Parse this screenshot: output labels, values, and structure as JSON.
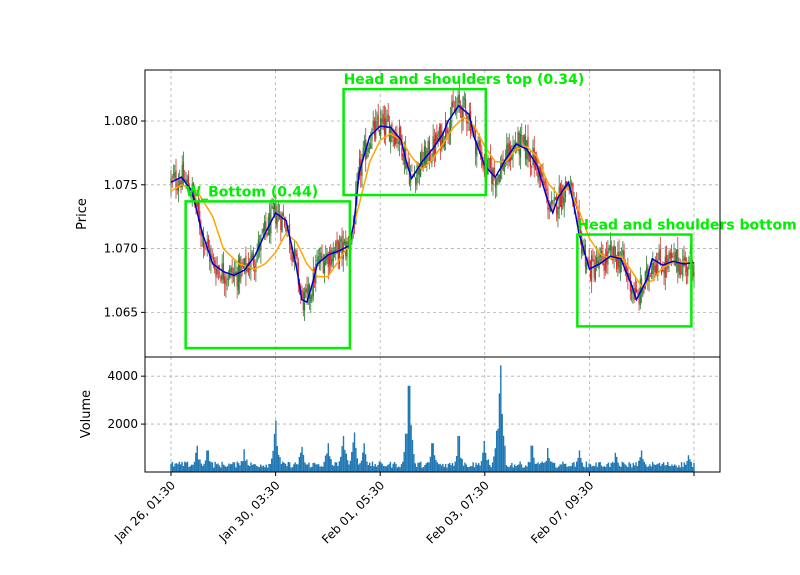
{
  "chart_data": {
    "type": "candlestick",
    "x_tick_labels": [
      "Jan 26, 01:30",
      "Jan 30, 03:30",
      "Feb 01, 05:30",
      "Feb 03, 07:30",
      "Feb 07, 09:30"
    ],
    "price_panel": {
      "ylabel": "Price",
      "ylim": [
        1.0615,
        1.084
      ],
      "y_ticks": [
        "1.065",
        "1.070",
        "1.075",
        "1.080"
      ],
      "grid": true,
      "fast_ma": [
        [
          0.0,
          1.0752
        ],
        [
          0.02,
          1.0756
        ],
        [
          0.04,
          1.0745
        ],
        [
          0.06,
          1.0712
        ],
        [
          0.08,
          1.0688
        ],
        [
          0.1,
          1.0682
        ],
        [
          0.12,
          1.0679
        ],
        [
          0.14,
          1.0683
        ],
        [
          0.16,
          1.0694
        ],
        [
          0.18,
          1.0712
        ],
        [
          0.2,
          1.0728
        ],
        [
          0.22,
          1.0722
        ],
        [
          0.24,
          1.0685
        ],
        [
          0.25,
          1.066
        ],
        [
          0.26,
          1.0658
        ],
        [
          0.27,
          1.0672
        ],
        [
          0.28,
          1.0688
        ],
        [
          0.3,
          1.0695
        ],
        [
          0.32,
          1.0698
        ],
        [
          0.34,
          1.0702
        ],
        [
          0.35,
          1.072
        ],
        [
          0.36,
          1.076
        ],
        [
          0.38,
          1.0788
        ],
        [
          0.4,
          1.0796
        ],
        [
          0.42,
          1.0795
        ],
        [
          0.44,
          1.0785
        ],
        [
          0.45,
          1.0768
        ],
        [
          0.46,
          1.0755
        ],
        [
          0.48,
          1.0768
        ],
        [
          0.5,
          1.0778
        ],
        [
          0.52,
          1.079
        ],
        [
          0.53,
          1.08
        ],
        [
          0.55,
          1.0812
        ],
        [
          0.57,
          1.0805
        ],
        [
          0.58,
          1.0787
        ],
        [
          0.6,
          1.0765
        ],
        [
          0.62,
          1.0756
        ],
        [
          0.64,
          1.077
        ],
        [
          0.66,
          1.0782
        ],
        [
          0.68,
          1.0778
        ],
        [
          0.7,
          1.0765
        ],
        [
          0.72,
          1.0738
        ],
        [
          0.73,
          1.0728
        ],
        [
          0.74,
          1.074
        ],
        [
          0.76,
          1.0752
        ],
        [
          0.77,
          1.0735
        ],
        [
          0.78,
          1.0712
        ],
        [
          0.8,
          1.0684
        ],
        [
          0.82,
          1.0688
        ],
        [
          0.84,
          1.0694
        ],
        [
          0.86,
          1.0692
        ],
        [
          0.88,
          1.0672
        ],
        [
          0.89,
          1.066
        ],
        [
          0.91,
          1.0676
        ],
        [
          0.92,
          1.0692
        ],
        [
          0.94,
          1.0687
        ],
        [
          0.96,
          1.069
        ],
        [
          0.98,
          1.0688
        ],
        [
          1.0,
          1.0689
        ]
      ],
      "slow_ma": [
        [
          0.0,
          1.0745
        ],
        [
          0.02,
          1.075
        ],
        [
          0.05,
          1.0745
        ],
        [
          0.08,
          1.0725
        ],
        [
          0.1,
          1.07
        ],
        [
          0.13,
          1.0688
        ],
        [
          0.16,
          1.0684
        ],
        [
          0.18,
          1.0688
        ],
        [
          0.2,
          1.0697
        ],
        [
          0.22,
          1.0712
        ],
        [
          0.24,
          1.0705
        ],
        [
          0.26,
          1.0688
        ],
        [
          0.28,
          1.0678
        ],
        [
          0.3,
          1.0678
        ],
        [
          0.32,
          1.069
        ],
        [
          0.34,
          1.0703
        ],
        [
          0.36,
          1.0735
        ],
        [
          0.38,
          1.0768
        ],
        [
          0.4,
          1.0785
        ],
        [
          0.42,
          1.079
        ],
        [
          0.44,
          1.0785
        ],
        [
          0.46,
          1.0772
        ],
        [
          0.48,
          1.0762
        ],
        [
          0.5,
          1.077
        ],
        [
          0.52,
          1.0782
        ],
        [
          0.54,
          1.0795
        ],
        [
          0.56,
          1.0803
        ],
        [
          0.58,
          1.0796
        ],
        [
          0.6,
          1.078
        ],
        [
          0.62,
          1.0768
        ],
        [
          0.64,
          1.0768
        ],
        [
          0.66,
          1.0778
        ],
        [
          0.68,
          1.078
        ],
        [
          0.7,
          1.0772
        ],
        [
          0.72,
          1.0752
        ],
        [
          0.74,
          1.0742
        ],
        [
          0.76,
          1.0748
        ],
        [
          0.78,
          1.073
        ],
        [
          0.8,
          1.0708
        ],
        [
          0.82,
          1.0696
        ],
        [
          0.84,
          1.0692
        ],
        [
          0.86,
          1.0694
        ],
        [
          0.88,
          1.0683
        ],
        [
          0.9,
          1.067
        ],
        [
          0.92,
          1.0675
        ],
        [
          0.94,
          1.0685
        ],
        [
          0.96,
          1.0689
        ],
        [
          0.98,
          1.069
        ],
        [
          1.0,
          1.0688
        ]
      ]
    },
    "volume_panel": {
      "ylabel": "Volume",
      "ylim": [
        0,
        4800
      ],
      "y_ticks": [
        "2000",
        "4000"
      ],
      "grid": true,
      "baseline": 180,
      "spikes": [
        [
          0.05,
          1100
        ],
        [
          0.07,
          900
        ],
        [
          0.14,
          950
        ],
        [
          0.2,
          2150
        ],
        [
          0.25,
          1050
        ],
        [
          0.3,
          1200
        ],
        [
          0.33,
          1500
        ],
        [
          0.35,
          1650
        ],
        [
          0.37,
          1200
        ],
        [
          0.45,
          1600
        ],
        [
          0.455,
          3600
        ],
        [
          0.5,
          1200
        ],
        [
          0.55,
          1500
        ],
        [
          0.6,
          1300
        ],
        [
          0.625,
          1800
        ],
        [
          0.63,
          4450
        ],
        [
          0.69,
          1100
        ],
        [
          0.72,
          1000
        ],
        [
          0.78,
          900
        ],
        [
          0.85,
          800
        ],
        [
          0.9,
          900
        ],
        [
          0.99,
          700
        ]
      ]
    },
    "patterns": [
      {
        "label": "W_Bottom (0.44)",
        "x_range": [
          0.028,
          0.342
        ],
        "y_range": [
          1.0622,
          1.0737
        ]
      },
      {
        "label": "Head and shoulders top (0.34)",
        "x_range": [
          0.33,
          0.602
        ],
        "y_range": [
          1.0742,
          1.0825
        ]
      },
      {
        "label": "Head and shoulders bottom",
        "x_range": [
          0.777,
          0.995
        ],
        "y_range": [
          1.0639,
          1.0711
        ]
      }
    ],
    "colors": {
      "fast_ma": "#0000cc",
      "slow_ma": "#ffa500",
      "pattern": "#00ee00",
      "bull": "#2e7d32",
      "bear": "#d32f2f",
      "volume": "#1f77b4",
      "grid": "#b0b0b0"
    }
  }
}
